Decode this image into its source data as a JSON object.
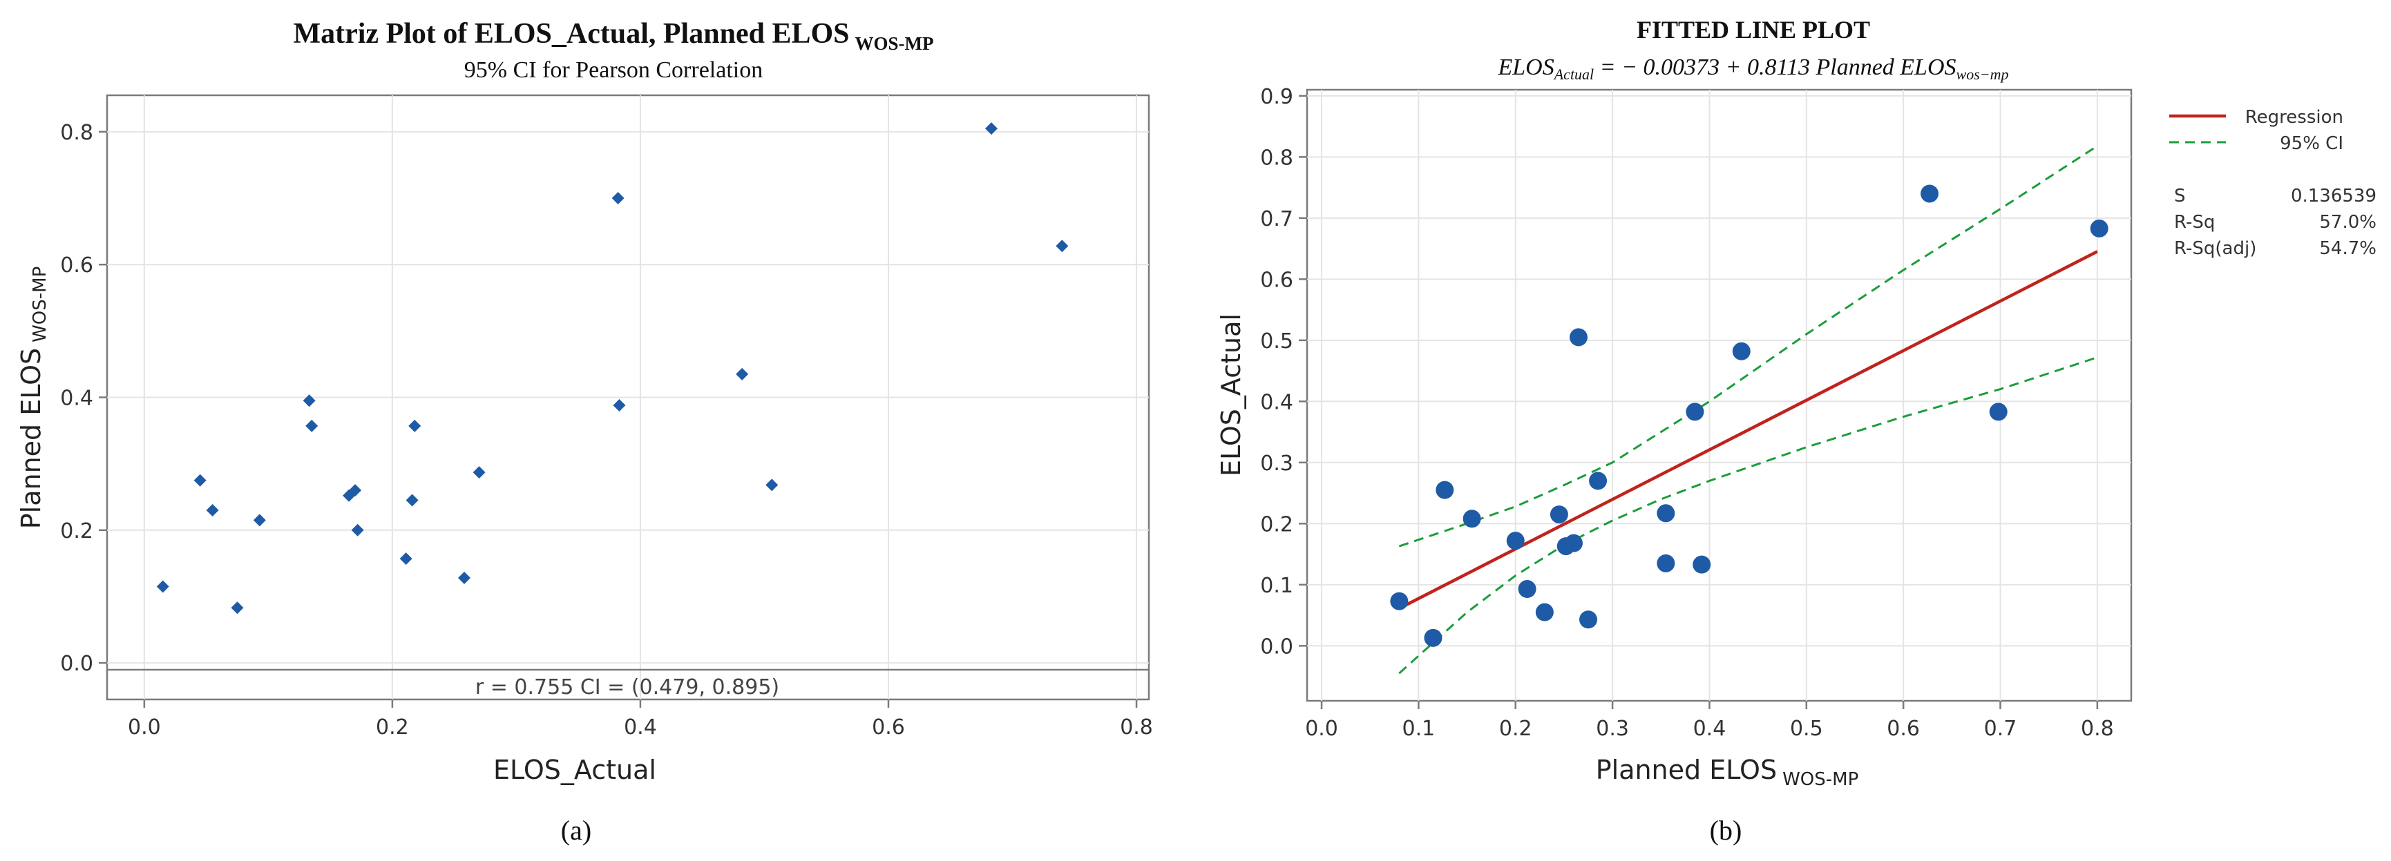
{
  "chart_data": [
    {
      "type": "scatter",
      "title": "Matriz Plot of ELOS_Actual, Planned ELOS",
      "title_sub": "WOS-MP",
      "subtitle": "95% CI for Pearson Correlation",
      "xlabel": "ELOS_Actual",
      "ylabel": "Planned ELOS",
      "ylabel_sub": "WOS-MP",
      "xlim": [
        -0.03,
        0.81
      ],
      "ylim": [
        -0.055,
        0.855
      ],
      "xticks": [
        "0.0",
        "0.2",
        "0.4",
        "0.6",
        "0.8"
      ],
      "xtick_values": [
        0.0,
        0.2,
        0.4,
        0.6,
        0.8
      ],
      "yticks": [
        "0.0",
        "0.2",
        "0.4",
        "0.6",
        "0.8"
      ],
      "ytick_values": [
        0.0,
        0.2,
        0.4,
        0.6,
        0.8
      ],
      "annotation": "r = 0.755  CI = (0.479, 0.895)",
      "caption": "(a)",
      "point_color": "#1f5aa6",
      "x": [
        0.015,
        0.045,
        0.055,
        0.075,
        0.093,
        0.133,
        0.135,
        0.165,
        0.17,
        0.172,
        0.211,
        0.216,
        0.218,
        0.258,
        0.27,
        0.382,
        0.383,
        0.482,
        0.506,
        0.683,
        0.74
      ],
      "y": [
        0.115,
        0.275,
        0.23,
        0.083,
        0.215,
        0.395,
        0.357,
        0.252,
        0.26,
        0.2,
        0.157,
        0.245,
        0.357,
        0.128,
        0.287,
        0.7,
        0.388,
        0.435,
        0.268,
        0.805,
        0.628
      ]
    },
    {
      "type": "scatter",
      "title": "FITTED LINE PLOT",
      "equation": "ELOS_Actual = − 0.00373 + 0.8113 Planned ELOS_wos-mp",
      "equation_parts": [
        "ELOS",
        "Actual",
        " = − 0.00373 + 0.8113 ",
        "Planned ELOS",
        "wos−mp"
      ],
      "xlabel": "Planned ELOS",
      "xlabel_sub": "WOS-MP",
      "ylabel": "ELOS_Actual",
      "xlim": [
        -0.015,
        0.835
      ],
      "ylim": [
        -0.09,
        0.91
      ],
      "xticks": [
        "0.0",
        "0.1",
        "0.2",
        "0.3",
        "0.4",
        "0.5",
        "0.6",
        "0.7",
        "0.8"
      ],
      "xtick_values": [
        0.0,
        0.1,
        0.2,
        0.3,
        0.4,
        0.5,
        0.6,
        0.7,
        0.8
      ],
      "yticks": [
        "0.0",
        "0.1",
        "0.2",
        "0.3",
        "0.4",
        "0.5",
        "0.6",
        "0.7",
        "0.8",
        "0.9"
      ],
      "ytick_values": [
        0.0,
        0.1,
        0.2,
        0.3,
        0.4,
        0.5,
        0.6,
        0.7,
        0.8,
        0.9
      ],
      "caption": "(b)",
      "point_color": "#1f5aa6",
      "regression_color": "#c0231e",
      "ci_color": "#1a9e3a",
      "legend": [
        {
          "label": "Regression",
          "style": "solid"
        },
        {
          "label": "95% CI",
          "style": "dashed"
        }
      ],
      "stats": [
        {
          "label": "S",
          "value": "0.136539"
        },
        {
          "label": "R-Sq",
          "value": "57.0%"
        },
        {
          "label": "R-Sq(adj)",
          "value": "54.7%"
        }
      ],
      "regression": {
        "intercept": -0.00373,
        "slope": 0.8113,
        "x_range": [
          0.08,
          0.8
        ]
      },
      "ci_lower": {
        "x": [
          0.08,
          0.15,
          0.2,
          0.25,
          0.3,
          0.35,
          0.4,
          0.5,
          0.6,
          0.7,
          0.8
        ],
        "y": [
          -0.045,
          0.055,
          0.115,
          0.165,
          0.205,
          0.24,
          0.27,
          0.325,
          0.375,
          0.42,
          0.472
        ]
      },
      "ci_upper": {
        "x": [
          0.08,
          0.15,
          0.2,
          0.25,
          0.3,
          0.35,
          0.4,
          0.5,
          0.6,
          0.7,
          0.8
        ],
        "y": [
          0.163,
          0.2,
          0.228,
          0.263,
          0.3,
          0.35,
          0.4,
          0.51,
          0.615,
          0.715,
          0.818
        ]
      },
      "x": [
        0.08,
        0.115,
        0.127,
        0.155,
        0.2,
        0.212,
        0.23,
        0.245,
        0.252,
        0.26,
        0.265,
        0.275,
        0.285,
        0.355,
        0.355,
        0.385,
        0.392,
        0.433,
        0.627,
        0.698,
        0.802
      ],
      "y": [
        0.073,
        0.013,
        0.255,
        0.208,
        0.172,
        0.093,
        0.055,
        0.215,
        0.163,
        0.168,
        0.505,
        0.043,
        0.27,
        0.217,
        0.135,
        0.383,
        0.133,
        0.482,
        0.74,
        0.383,
        0.683
      ]
    }
  ]
}
